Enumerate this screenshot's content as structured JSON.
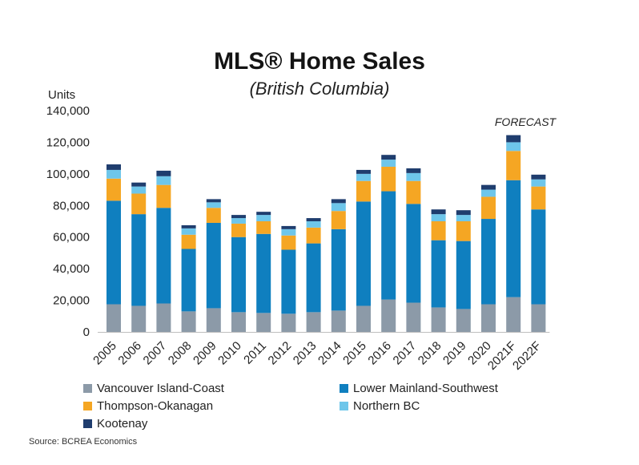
{
  "chart_data": {
    "type": "bar",
    "stacked": true,
    "title": "MLS® Home Sales",
    "subtitle": "(British Columbia)",
    "ylabel": "Units",
    "ylim": [
      0,
      140000
    ],
    "yticks": [
      0,
      20000,
      40000,
      60000,
      80000,
      100000,
      120000,
      140000
    ],
    "ytick_labels": [
      "0",
      "20,000",
      "40,000",
      "60,000",
      "80,000",
      "100,000",
      "120,000",
      "140,000"
    ],
    "grid": false,
    "legend_position": "bottom",
    "annotation": "FORECAST",
    "categories": [
      "2005",
      "2006",
      "2007",
      "2008",
      "2009",
      "2010",
      "2011",
      "2012",
      "2013",
      "2014",
      "2015",
      "2016",
      "2017",
      "2018",
      "2019",
      "2020",
      "2021F",
      "2022F"
    ],
    "series": [
      {
        "name": "Vancouver Island-Coast",
        "color": "#8c9aa8",
        "values": [
          17500,
          16500,
          18000,
          13000,
          15000,
          12500,
          12000,
          11500,
          12500,
          13500,
          16500,
          20500,
          18500,
          15500,
          14500,
          17500,
          22000,
          17500
        ]
      },
      {
        "name": "Lower Mainland-Southwest",
        "color": "#0f7fbf",
        "values": [
          65500,
          58000,
          60500,
          39500,
          54000,
          47500,
          50000,
          40500,
          43500,
          51500,
          66000,
          68500,
          62500,
          42500,
          43000,
          54000,
          74000,
          60000
        ]
      },
      {
        "name": "Thompson-Okanagan",
        "color": "#f5a623",
        "values": [
          14000,
          13000,
          14500,
          9000,
          9500,
          8500,
          8000,
          9000,
          10000,
          11500,
          13000,
          15500,
          14500,
          12000,
          12500,
          14000,
          18500,
          14500
        ]
      },
      {
        "name": "Northern BC",
        "color": "#6ec6ea",
        "values": [
          5500,
          4500,
          5500,
          4000,
          3500,
          3500,
          4000,
          4000,
          4000,
          5000,
          4500,
          4500,
          5000,
          4500,
          4000,
          4500,
          5500,
          4500
        ]
      },
      {
        "name": "Kootenay",
        "color": "#1f3d6e",
        "values": [
          3500,
          2500,
          3500,
          2000,
          2000,
          2000,
          2000,
          2000,
          2000,
          2500,
          2500,
          3000,
          3000,
          3000,
          3000,
          3000,
          4500,
          3000
        ]
      }
    ]
  },
  "source": "Source: BCREA Economics"
}
